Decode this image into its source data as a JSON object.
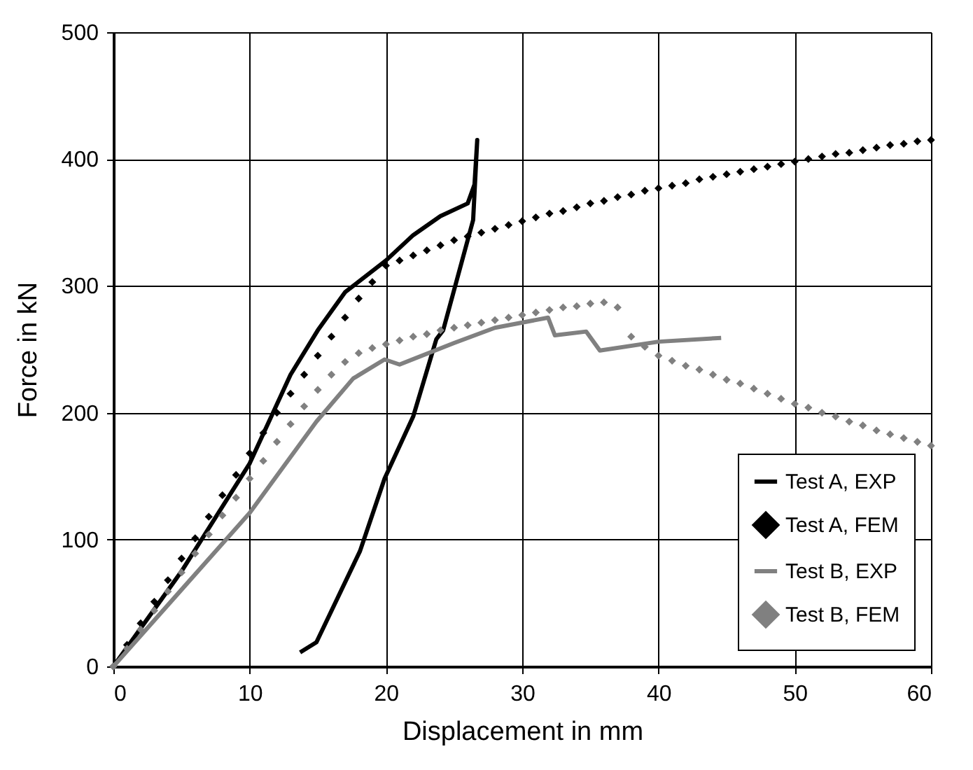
{
  "chart_data": {
    "type": "line",
    "xlabel": "Displacement in mm",
    "ylabel": "Force in kN",
    "xlim": [
      0,
      60
    ],
    "xticks": [
      0,
      10,
      20,
      30,
      40,
      50,
      60
    ],
    "ylim": [
      0,
      500
    ],
    "yticks": [
      0,
      100,
      200,
      300,
      400,
      500
    ],
    "grid": true,
    "legend": "bottom right",
    "series": [
      {
        "name": "Test A, EXP",
        "color": "#000000",
        "marker": "none",
        "line_style": "solid",
        "x": [
          0,
          5,
          10,
          13,
          15,
          17,
          20,
          22,
          24,
          26,
          26.5,
          26.7,
          26.4,
          24.2,
          23.7,
          22,
          19.9,
          18.1,
          14.9,
          13.7
        ],
        "values": [
          0,
          75,
          160,
          230,
          265,
          295,
          320,
          340,
          355,
          365,
          380,
          415,
          352,
          265,
          258,
          197,
          148,
          91,
          19,
          11
        ]
      },
      {
        "name": "Test A, FEM",
        "type": "scatter",
        "color": "#000000",
        "marker": "diamond",
        "x": [
          0,
          1,
          2,
          3,
          4,
          5,
          6,
          7,
          8,
          9,
          10,
          11,
          12,
          13,
          14,
          15,
          16,
          17,
          18,
          19,
          20,
          21,
          22,
          23,
          24,
          25,
          26,
          27,
          28,
          29,
          30,
          31,
          32,
          33,
          34,
          35,
          36,
          37,
          38,
          39,
          40,
          41,
          42,
          43,
          44,
          45,
          46,
          47,
          48,
          49,
          50,
          51,
          52,
          53,
          54,
          55,
          56,
          57,
          58,
          59,
          60
        ],
        "values": [
          0,
          17,
          34,
          51,
          68,
          85,
          101,
          118,
          135,
          151,
          168,
          184,
          200,
          215,
          230,
          245,
          260,
          275,
          290,
          303,
          316,
          320,
          324,
          328,
          332,
          336,
          339,
          342,
          345,
          348,
          351,
          354,
          357,
          359,
          362,
          365,
          367,
          370,
          372,
          375,
          377,
          379,
          381,
          384,
          386,
          388,
          390,
          392,
          394,
          396,
          398,
          400,
          402,
          404,
          405,
          407,
          409,
          411,
          412,
          414,
          415
        ]
      },
      {
        "name": "Test B, EXP",
        "color": "#808080",
        "marker": "none",
        "line_style": "solid",
        "x": [
          0,
          10,
          14.9,
          17.6,
          19.9,
          21,
          25,
          28,
          31.9,
          32.4,
          34.7,
          35.7,
          40,
          44.6
        ],
        "values": [
          0,
          121,
          193,
          227,
          242,
          238,
          255,
          267,
          275,
          261,
          264,
          249,
          256,
          259
        ]
      },
      {
        "name": "Test B, FEM",
        "type": "scatter",
        "color": "#808080",
        "marker": "diamond",
        "x": [
          0,
          1,
          2,
          3,
          4,
          5,
          6,
          7,
          8,
          9,
          10,
          11,
          12,
          13,
          14,
          15,
          16,
          17,
          18,
          19,
          20,
          21,
          22,
          23,
          24,
          25,
          26,
          27,
          28,
          29,
          30,
          31,
          32,
          33,
          34,
          35,
          36,
          37,
          38,
          39,
          40,
          41,
          42,
          43,
          44,
          45,
          46,
          47,
          48,
          49,
          50,
          51,
          52,
          53,
          54,
          55,
          56,
          57,
          58,
          59,
          60
        ],
        "values": [
          0,
          14,
          29,
          44,
          59,
          74,
          89,
          104,
          119,
          133,
          148,
          162,
          177,
          191,
          205,
          218,
          230,
          240,
          247,
          251,
          254,
          257,
          260,
          262,
          265,
          267,
          269,
          271,
          273,
          275,
          277,
          279,
          281,
          283,
          284,
          286,
          287,
          283,
          260,
          252,
          245,
          241,
          237,
          234,
          230,
          226,
          223,
          219,
          215,
          211,
          207,
          204,
          200,
          197,
          193,
          190,
          186,
          183,
          180,
          177,
          174
        ]
      }
    ]
  }
}
